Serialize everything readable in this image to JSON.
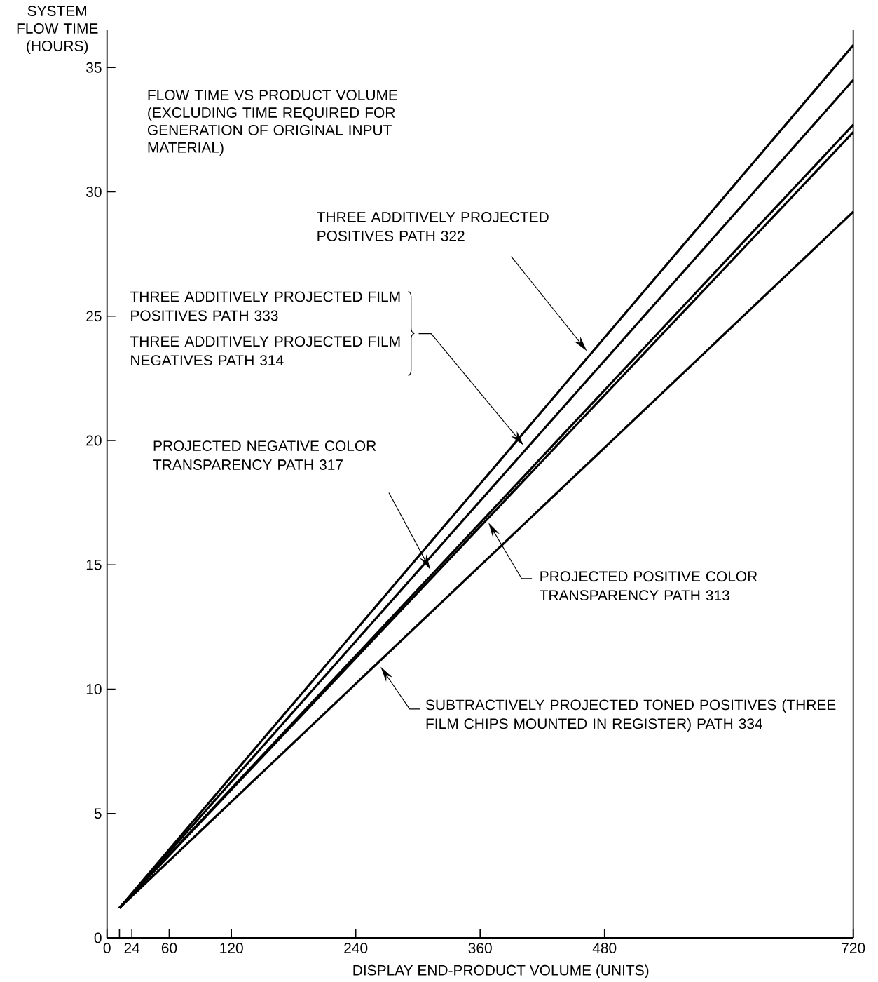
{
  "chart_data": {
    "type": "line",
    "title": "FLOW TIME VS PRODUCT VOLUME (EXCLUDING TIME REQUIRED FOR GENERATION OF ORIGINAL INPUT MATERIAL)",
    "xlabel": "DISPLAY END-PRODUCT VOLUME (UNITS)",
    "ylabel": "SYSTEM FLOW TIME (HOURS)",
    "xlim": [
      0,
      720
    ],
    "ylim": [
      0,
      36.5
    ],
    "xticks": [
      0,
      {
        "value": 12,
        "label": null
      },
      24,
      60,
      120,
      240,
      360,
      480,
      720
    ],
    "yticks": [
      0,
      5,
      10,
      15,
      20,
      25,
      30,
      35
    ],
    "x": [
      12,
      720
    ],
    "series": [
      {
        "color": "#000000",
        "values": [
          1.2,
          35.9
        ]
      },
      {
        "color": "#000000",
        "values": [
          1.2,
          34.5
        ]
      },
      {
        "color": "#000000",
        "values": [
          1.2,
          32.7
        ]
      },
      {
        "color": "#000000",
        "values": [
          1.2,
          32.4
        ]
      },
      {
        "color": "#000000",
        "values": [
          1.2,
          29.2
        ]
      }
    ],
    "annotations": [
      "THREE ADDITIVELY PROJECTED POSITIVES PATH 322",
      "THREE ADDITIVELY PROJECTED FILM POSITIVES PATH 333",
      "THREE ADDITIVELY PROJECTED FILM NEGATIVES PATH 314",
      "PROJECTED NEGATIVE COLOR TRANSPARENCY PATH 317",
      "PROJECTED POSITIVE COLOR TRANSPARENCY PATH 313",
      "SUBTRACTIVELY PROJECTED TONED POSITIVES (THREE FILM CHIPS MOUNTED IN REGISTER) PATH 334"
    ]
  }
}
